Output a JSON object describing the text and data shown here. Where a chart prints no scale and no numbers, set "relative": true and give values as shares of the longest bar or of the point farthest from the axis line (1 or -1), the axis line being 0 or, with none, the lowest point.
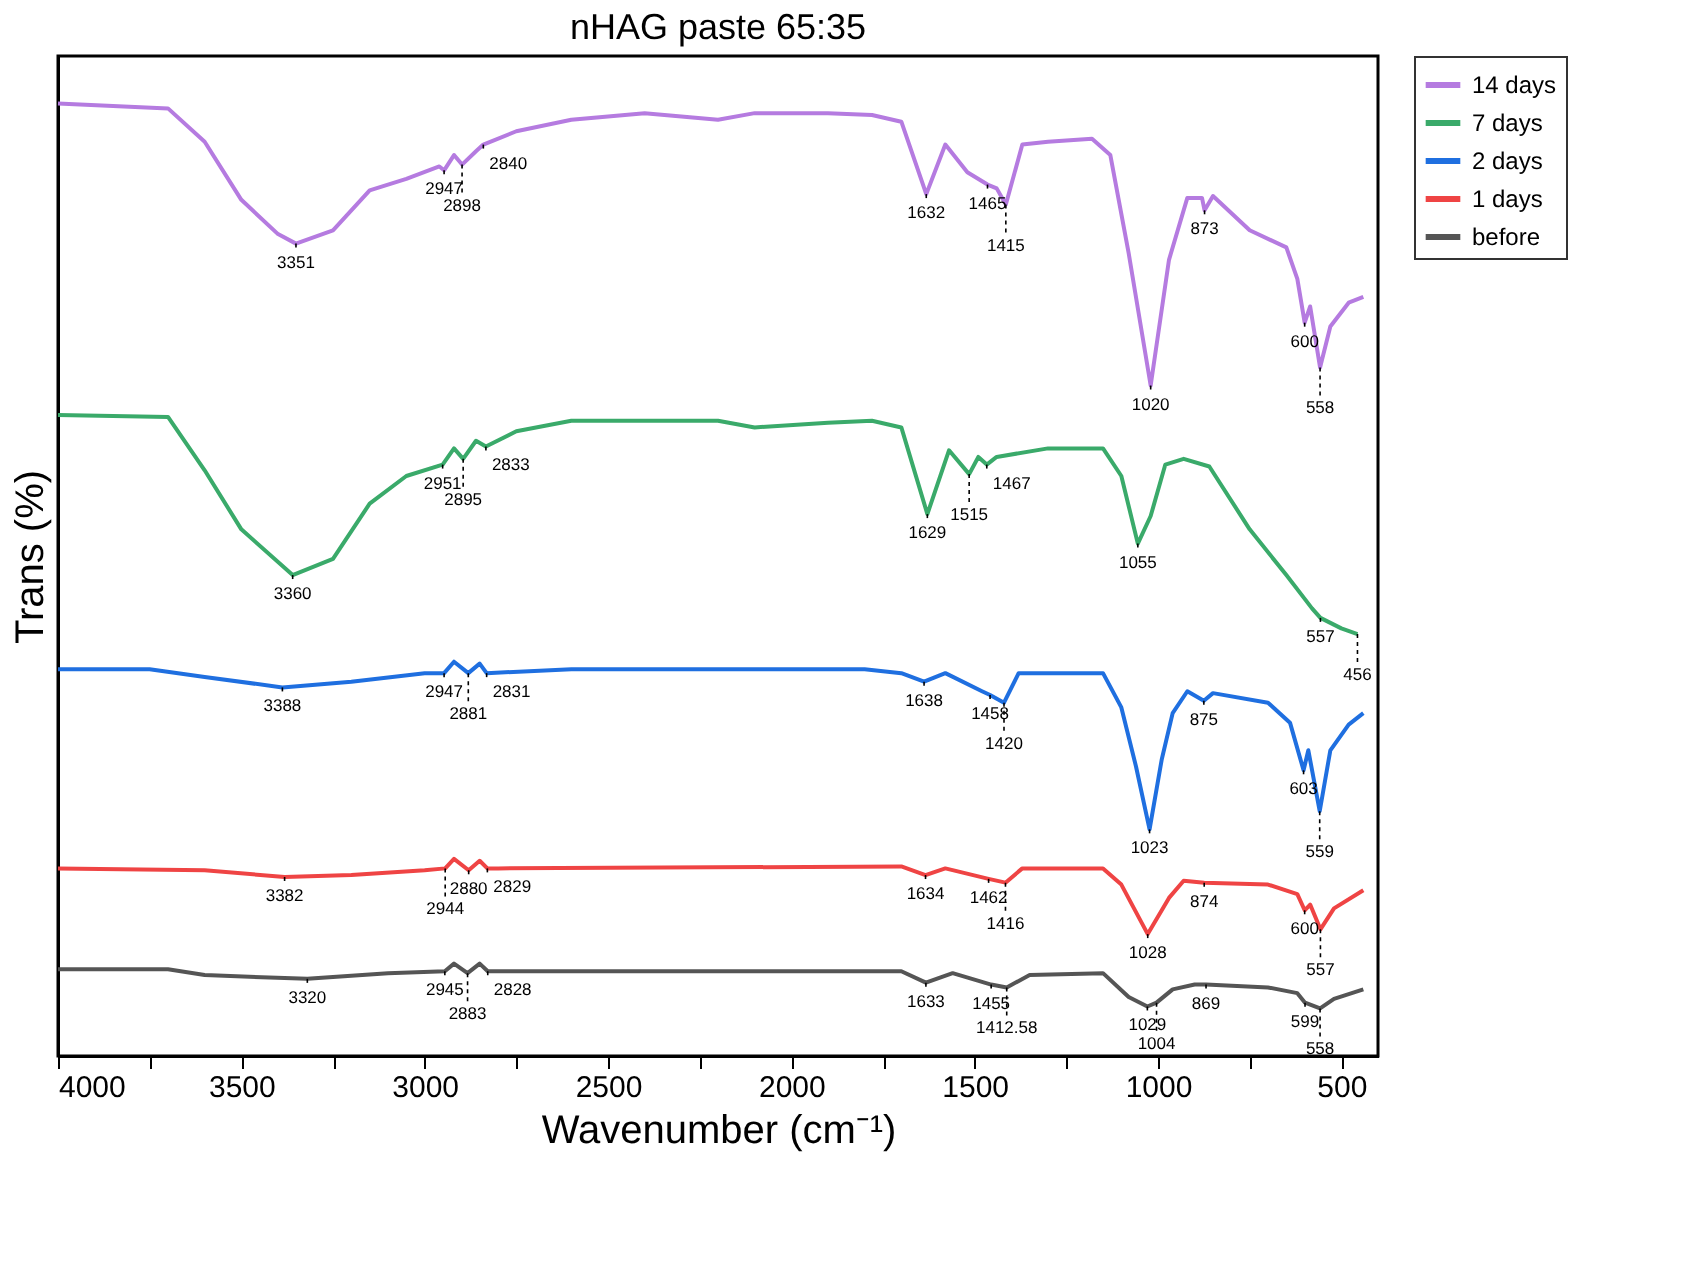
{
  "chart_data": {
    "type": "line",
    "title": "nHAG paste 65:35",
    "xlabel": "Wavenumber (cm⁻¹)",
    "ylabel": "Trans (%)",
    "relative": true,
    "legend": "top right",
    "grid": false,
    "marker": "none",
    "line_style": "solid",
    "xlim": [
      4000,
      400
    ],
    "xticks": [
      4000,
      {
        "value": 3750,
        "label": null
      },
      3500,
      {
        "value": 3250,
        "label": null
      },
      3000,
      {
        "value": 2750,
        "label": null
      },
      2500,
      {
        "value": 2250,
        "label": null
      },
      2000,
      {
        "value": 1750,
        "label": null
      },
      1500,
      {
        "value": 1250,
        "label": null
      },
      1000,
      {
        "value": 750,
        "label": null
      },
      500
    ],
    "series": [
      {
        "name": "14 days",
        "color": "#b57be0",
        "x": [
          4000,
          3700,
          3600,
          3500,
          3400,
          3351,
          3250,
          3150,
          3050,
          2960,
          2947,
          2920,
          2898,
          2860,
          2840,
          2750,
          2600,
          2400,
          2200,
          2100,
          1900,
          1780,
          1700,
          1632,
          1580,
          1520,
          1465,
          1440,
          1415,
          1370,
          1300,
          1180,
          1130,
          1080,
          1020,
          970,
          920,
          880,
          873,
          850,
          750,
          650,
          620,
          600,
          585,
          558,
          530,
          480,
          440
        ],
        "values": [
          1.0,
          0.995,
          0.96,
          0.899,
          0.863,
          0.853,
          0.867,
          0.909,
          0.921,
          0.934,
          0.93,
          0.946,
          0.936,
          0.95,
          0.957,
          0.971,
          0.983,
          0.99,
          0.983,
          0.99,
          0.99,
          0.988,
          0.981,
          0.905,
          0.957,
          0.928,
          0.915,
          0.911,
          0.894,
          0.957,
          0.96,
          0.963,
          0.946,
          0.843,
          0.704,
          0.836,
          0.901,
          0.901,
          0.888,
          0.903,
          0.867,
          0.849,
          0.816,
          0.77,
          0.787,
          0.723,
          0.766,
          0.791,
          0.797
        ]
      },
      {
        "name": "7 days",
        "color": "#3aaa6a",
        "x": [
          4000,
          3700,
          3600,
          3500,
          3360,
          3250,
          3150,
          3050,
          2951,
          2920,
          2895,
          2860,
          2833,
          2750,
          2600,
          2200,
          2100,
          1900,
          1780,
          1700,
          1629,
          1570,
          1515,
          1490,
          1467,
          1440,
          1300,
          1150,
          1100,
          1055,
          1020,
          980,
          930,
          860,
          750,
          650,
          580,
          557,
          500,
          456
        ],
        "values": [
          0.673,
          0.671,
          0.615,
          0.553,
          0.505,
          0.522,
          0.58,
          0.609,
          0.621,
          0.638,
          0.627,
          0.646,
          0.64,
          0.656,
          0.667,
          0.667,
          0.66,
          0.665,
          0.667,
          0.66,
          0.569,
          0.636,
          0.611,
          0.629,
          0.621,
          0.629,
          0.638,
          0.638,
          0.609,
          0.538,
          0.567,
          0.621,
          0.627,
          0.619,
          0.553,
          0.505,
          0.47,
          0.46,
          0.449,
          0.443
        ]
      },
      {
        "name": "2 days",
        "color": "#1f6fe0",
        "x": [
          4000,
          3750,
          3600,
          3388,
          3200,
          3000,
          2947,
          2920,
          2881,
          2850,
          2831,
          2600,
          1800,
          1700,
          1638,
          1580,
          1480,
          1458,
          1420,
          1380,
          1150,
          1100,
          1060,
          1023,
          990,
          960,
          920,
          875,
          850,
          700,
          640,
          603,
          590,
          559,
          530,
          480,
          440
        ],
        "values": [
          0.406,
          0.406,
          0.398,
          0.387,
          0.393,
          0.402,
          0.402,
          0.414,
          0.402,
          0.412,
          0.402,
          0.406,
          0.406,
          0.402,
          0.393,
          0.402,
          0.383,
          0.379,
          0.371,
          0.402,
          0.402,
          0.366,
          0.304,
          0.238,
          0.311,
          0.36,
          0.383,
          0.373,
          0.381,
          0.371,
          0.35,
          0.3,
          0.321,
          0.257,
          0.321,
          0.348,
          0.36
        ]
      },
      {
        "name": "1 days",
        "color": "#ef4444",
        "x": [
          4000,
          3600,
          3382,
          3200,
          3000,
          2944,
          2920,
          2880,
          2850,
          2829,
          2800,
          1700,
          1634,
          1580,
          1462,
          1416,
          1370,
          1150,
          1100,
          1028,
          970,
          930,
          874,
          700,
          620,
          600,
          585,
          557,
          520,
          440
        ],
        "values": [
          0.197,
          0.195,
          0.188,
          0.19,
          0.195,
          0.197,
          0.207,
          0.195,
          0.205,
          0.197,
          0.197,
          0.199,
          0.19,
          0.197,
          0.186,
          0.182,
          0.197,
          0.197,
          0.18,
          0.128,
          0.166,
          0.184,
          0.182,
          0.18,
          0.17,
          0.153,
          0.159,
          0.133,
          0.155,
          0.174
        ]
      },
      {
        "name": "before",
        "color": "#555555",
        "x": [
          4000,
          3700,
          3600,
          3320,
          3100,
          2945,
          2920,
          2883,
          2850,
          2828,
          2800,
          1700,
          1633,
          1560,
          1455,
          1412.58,
          1350,
          1150,
          1080,
          1029,
          1004,
          960,
          900,
          869,
          700,
          620,
          599,
          558,
          520,
          440
        ],
        "values": [
          0.091,
          0.091,
          0.085,
          0.081,
          0.087,
          0.089,
          0.097,
          0.087,
          0.097,
          0.089,
          0.089,
          0.089,
          0.077,
          0.087,
          0.075,
          0.072,
          0.085,
          0.087,
          0.062,
          0.052,
          0.056,
          0.07,
          0.075,
          0.075,
          0.072,
          0.066,
          0.056,
          0.05,
          0.06,
          0.07
        ]
      }
    ],
    "annotations": [
      {
        "text": "3351",
        "x": 3351,
        "y": 0.853
      },
      {
        "text": "2947",
        "x": 2947,
        "y": 0.93
      },
      {
        "text": "2898",
        "x": 2898,
        "y": 0.936
      },
      {
        "text": "2840",
        "x": 2840,
        "y": 0.957
      },
      {
        "text": "1632",
        "x": 1632,
        "y": 0.905
      },
      {
        "text": "1465",
        "x": 1465,
        "y": 0.915
      },
      {
        "text": "1415",
        "x": 1415,
        "y": 0.894
      },
      {
        "text": "1020",
        "x": 1020,
        "y": 0.704
      },
      {
        "text": "873",
        "x": 873,
        "y": 0.888
      },
      {
        "text": "600",
        "x": 600,
        "y": 0.77
      },
      {
        "text": "558",
        "x": 558,
        "y": 0.723
      },
      {
        "text": "3360",
        "x": 3360,
        "y": 0.505
      },
      {
        "text": "2951",
        "x": 2951,
        "y": 0.621
      },
      {
        "text": "2895",
        "x": 2895,
        "y": 0.627
      },
      {
        "text": "2833",
        "x": 2833,
        "y": 0.64
      },
      {
        "text": "1629",
        "x": 1629,
        "y": 0.569
      },
      {
        "text": "1515",
        "x": 1515,
        "y": 0.611
      },
      {
        "text": "1467",
        "x": 1467,
        "y": 0.621
      },
      {
        "text": "1055",
        "x": 1055,
        "y": 0.538
      },
      {
        "text": "557",
        "x": 557,
        "y": 0.46
      },
      {
        "text": "456",
        "x": 456,
        "y": 0.443
      },
      {
        "text": "3388",
        "x": 3388,
        "y": 0.387
      },
      {
        "text": "2947",
        "x": 2947,
        "y": 0.402
      },
      {
        "text": "2881",
        "x": 2881,
        "y": 0.402
      },
      {
        "text": "2831",
        "x": 2831,
        "y": 0.402
      },
      {
        "text": "1638",
        "x": 1638,
        "y": 0.393
      },
      {
        "text": "1458",
        "x": 1458,
        "y": 0.379
      },
      {
        "text": "1420",
        "x": 1420,
        "y": 0.371
      },
      {
        "text": "1023",
        "x": 1023,
        "y": 0.238
      },
      {
        "text": "875",
        "x": 875,
        "y": 0.373
      },
      {
        "text": "603",
        "x": 603,
        "y": 0.3
      },
      {
        "text": "559",
        "x": 559,
        "y": 0.257
      },
      {
        "text": "3382",
        "x": 3382,
        "y": 0.188
      },
      {
        "text": "2880",
        "x": 2880,
        "y": 0.195
      },
      {
        "text": "2944",
        "x": 2944,
        "y": 0.197
      },
      {
        "text": "2829",
        "x": 2829,
        "y": 0.197
      },
      {
        "text": "1634",
        "x": 1634,
        "y": 0.19
      },
      {
        "text": "1462",
        "x": 1462,
        "y": 0.186
      },
      {
        "text": "1416",
        "x": 1416,
        "y": 0.182
      },
      {
        "text": "1028",
        "x": 1028,
        "y": 0.128
      },
      {
        "text": "874",
        "x": 874,
        "y": 0.182
      },
      {
        "text": "600",
        "x": 600,
        "y": 0.153
      },
      {
        "text": "557",
        "x": 557,
        "y": 0.133
      },
      {
        "text": "3320",
        "x": 3320,
        "y": 0.081
      },
      {
        "text": "2945",
        "x": 2945,
        "y": 0.089
      },
      {
        "text": "2883",
        "x": 2883,
        "y": 0.087
      },
      {
        "text": "2828",
        "x": 2828,
        "y": 0.089
      },
      {
        "text": "1633",
        "x": 1633,
        "y": 0.077
      },
      {
        "text": "1455",
        "x": 1455,
        "y": 0.075
      },
      {
        "text": "1412.58",
        "x": 1412.58,
        "y": 0.072
      },
      {
        "text": "1029",
        "x": 1029,
        "y": 0.052
      },
      {
        "text": "1004",
        "x": 1004,
        "y": 0.056
      },
      {
        "text": "869",
        "x": 869,
        "y": 0.075
      },
      {
        "text": "599",
        "x": 599,
        "y": 0.056
      },
      {
        "text": "558",
        "x": 558,
        "y": 0.05
      }
    ]
  }
}
